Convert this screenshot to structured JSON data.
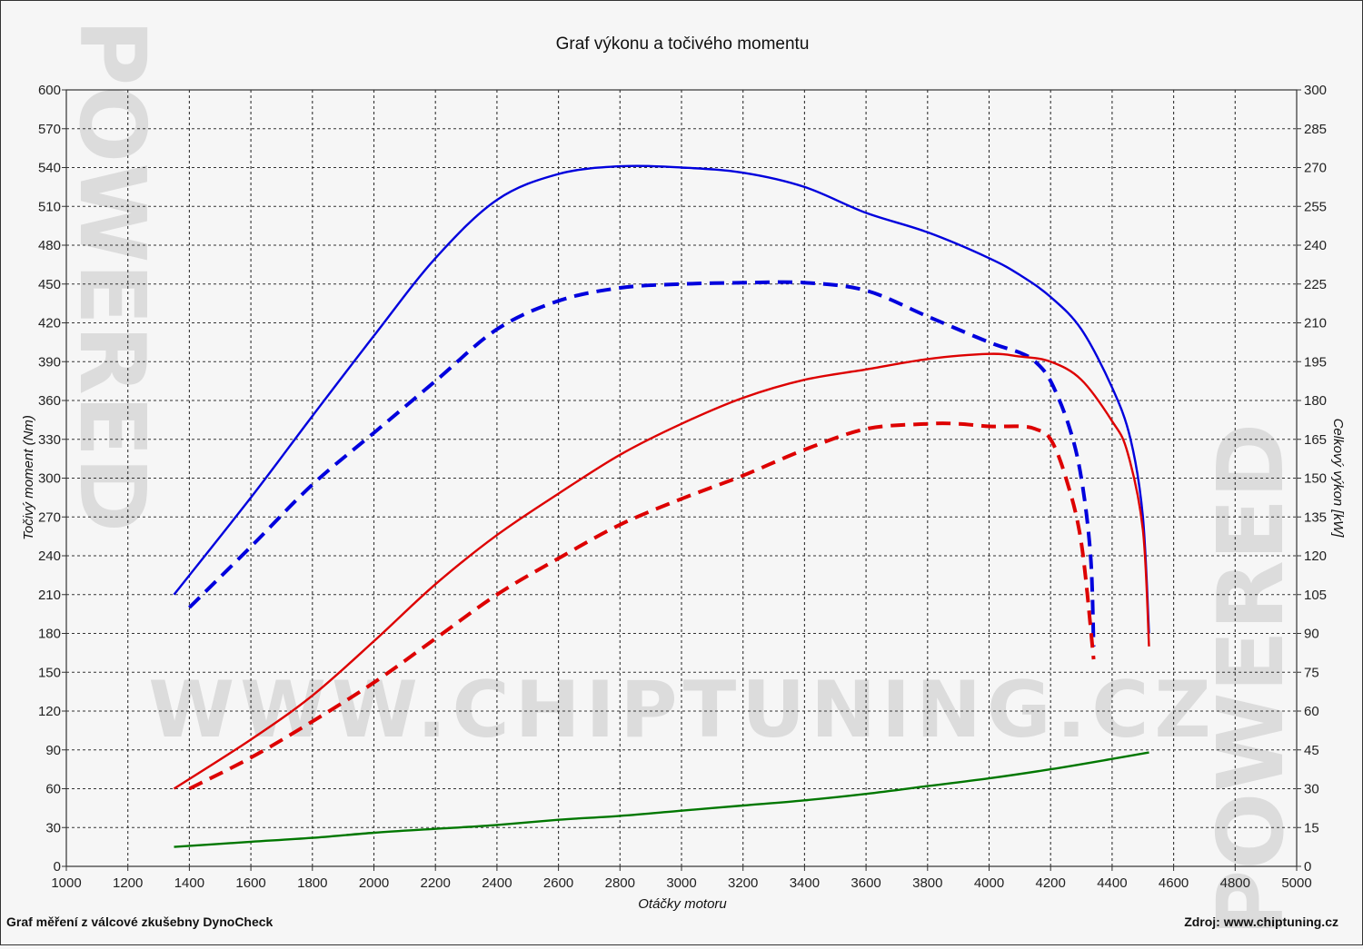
{
  "colors": {
    "background": "#f6f6f6",
    "grid": "#333333",
    "tuned": "#0000dd",
    "power": "#dd0000",
    "difference": "#007700",
    "watermark": "#dcdcdc"
  },
  "watermark": {
    "url": "WWW.CHIPTUNING.CZ",
    "side": "POWERED"
  },
  "footer": {
    "left": "Graf měření z válcové zkušebny DynoCheck",
    "right": "Zdroj: www.chiptuning.cz"
  },
  "chart_data": {
    "type": "line",
    "title": "Graf výkonu a točivého momentu",
    "xlabel": "Otáčky motoru",
    "ylabel_left": "Točivý moment (Nm)",
    "ylabel_right": "Celkový výkon [kW]",
    "xlim": [
      1000,
      5000
    ],
    "ylim_left": [
      0,
      600
    ],
    "ylim_right": [
      0,
      300
    ],
    "x_ticks": [
      1000,
      1200,
      1400,
      1600,
      1800,
      2000,
      2200,
      2400,
      2600,
      2800,
      3000,
      3200,
      3400,
      3600,
      3800,
      4000,
      4200,
      4400,
      4600,
      4800,
      5000
    ],
    "y_ticks_left": [
      0,
      30,
      60,
      90,
      120,
      150,
      180,
      210,
      240,
      270,
      300,
      330,
      360,
      390,
      420,
      450,
      480,
      510,
      540,
      570,
      600
    ],
    "y_ticks_right": [
      0,
      15,
      30,
      45,
      60,
      75,
      90,
      105,
      120,
      135,
      150,
      165,
      180,
      195,
      210,
      225,
      240,
      255,
      270,
      285,
      300
    ],
    "grid": true,
    "series": [
      {
        "axis": "left",
        "color": "#0000dd",
        "style": "solid",
        "points": [
          [
            1350,
            210
          ],
          [
            1600,
            285
          ],
          [
            1800,
            348
          ],
          [
            2000,
            410
          ],
          [
            2200,
            470
          ],
          [
            2400,
            515
          ],
          [
            2600,
            535
          ],
          [
            2800,
            541
          ],
          [
            3000,
            540
          ],
          [
            3200,
            536
          ],
          [
            3400,
            525
          ],
          [
            3600,
            505
          ],
          [
            3800,
            490
          ],
          [
            4000,
            470
          ],
          [
            4100,
            457
          ],
          [
            4200,
            440
          ],
          [
            4300,
            415
          ],
          [
            4400,
            370
          ],
          [
            4460,
            330
          ],
          [
            4500,
            270
          ],
          [
            4520,
            180
          ]
        ]
      },
      {
        "axis": "left",
        "color": "#0000dd",
        "style": "dashed",
        "points": [
          [
            1400,
            200
          ],
          [
            1600,
            247
          ],
          [
            1800,
            295
          ],
          [
            2000,
            335
          ],
          [
            2200,
            375
          ],
          [
            2400,
            415
          ],
          [
            2600,
            437
          ],
          [
            2800,
            447
          ],
          [
            3000,
            450
          ],
          [
            3200,
            451
          ],
          [
            3400,
            451
          ],
          [
            3600,
            445
          ],
          [
            3800,
            425
          ],
          [
            4000,
            405
          ],
          [
            4100,
            397
          ],
          [
            4150,
            390
          ],
          [
            4200,
            375
          ],
          [
            4260,
            340
          ],
          [
            4300,
            300
          ],
          [
            4330,
            240
          ],
          [
            4340,
            170
          ]
        ]
      },
      {
        "axis": "right",
        "color": "#dd0000",
        "style": "solid",
        "points": [
          [
            1350,
            30
          ],
          [
            1600,
            49
          ],
          [
            1800,
            66
          ],
          [
            2000,
            87
          ],
          [
            2200,
            109
          ],
          [
            2400,
            128
          ],
          [
            2600,
            144
          ],
          [
            2800,
            159
          ],
          [
            3000,
            171
          ],
          [
            3200,
            181
          ],
          [
            3400,
            188
          ],
          [
            3600,
            192
          ],
          [
            3800,
            196
          ],
          [
            4000,
            198
          ],
          [
            4100,
            197
          ],
          [
            4200,
            195
          ],
          [
            4300,
            188
          ],
          [
            4400,
            172
          ],
          [
            4450,
            160
          ],
          [
            4500,
            130
          ],
          [
            4520,
            85
          ]
        ]
      },
      {
        "axis": "right",
        "color": "#dd0000",
        "style": "dashed",
        "points": [
          [
            1400,
            30
          ],
          [
            1600,
            42
          ],
          [
            1800,
            56
          ],
          [
            2000,
            71
          ],
          [
            2200,
            88
          ],
          [
            2400,
            105
          ],
          [
            2600,
            119
          ],
          [
            2800,
            132
          ],
          [
            3000,
            142
          ],
          [
            3200,
            151
          ],
          [
            3400,
            161
          ],
          [
            3600,
            169
          ],
          [
            3800,
            171
          ],
          [
            3900,
            171
          ],
          [
            4000,
            170
          ],
          [
            4100,
            170
          ],
          [
            4150,
            169
          ],
          [
            4200,
            165
          ],
          [
            4250,
            150
          ],
          [
            4300,
            125
          ],
          [
            4340,
            80
          ]
        ]
      },
      {
        "axis": "left",
        "color": "#007700",
        "style": "solid",
        "points": [
          [
            1350,
            15
          ],
          [
            1600,
            19
          ],
          [
            1800,
            22
          ],
          [
            2000,
            26
          ],
          [
            2200,
            29
          ],
          [
            2400,
            32
          ],
          [
            2600,
            36
          ],
          [
            2800,
            39
          ],
          [
            3000,
            43
          ],
          [
            3200,
            47
          ],
          [
            3400,
            51
          ],
          [
            3600,
            56
          ],
          [
            3800,
            62
          ],
          [
            4000,
            68
          ],
          [
            4200,
            75
          ],
          [
            4400,
            83
          ],
          [
            4520,
            88
          ]
        ]
      }
    ]
  }
}
